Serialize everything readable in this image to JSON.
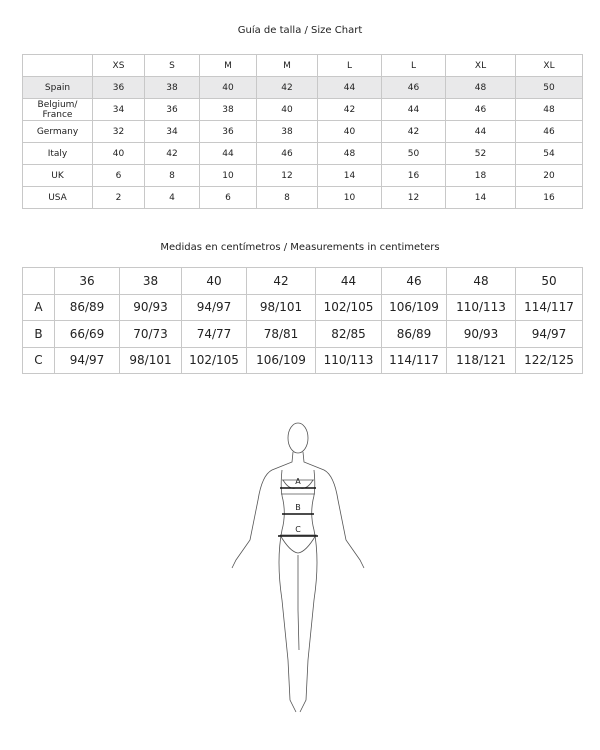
{
  "size_chart": {
    "title": "Guía de talla / Size Chart",
    "headers": [
      "",
      "XS",
      "S",
      "M",
      "M",
      "L",
      "L",
      "XL",
      "XL"
    ],
    "rows": [
      {
        "label": "Spain",
        "values": [
          "36",
          "38",
          "40",
          "42",
          "44",
          "46",
          "48",
          "50"
        ]
      },
      {
        "label": "Belgium/ France",
        "values": [
          "34",
          "36",
          "38",
          "40",
          "42",
          "44",
          "46",
          "48"
        ]
      },
      {
        "label": "Germany",
        "values": [
          "32",
          "34",
          "36",
          "38",
          "40",
          "42",
          "44",
          "46"
        ]
      },
      {
        "label": "Italy",
        "values": [
          "40",
          "42",
          "44",
          "46",
          "48",
          "50",
          "52",
          "54"
        ]
      },
      {
        "label": "UK",
        "values": [
          "6",
          "8",
          "10",
          "12",
          "14",
          "16",
          "18",
          "20"
        ]
      },
      {
        "label": "USA",
        "values": [
          "2",
          "4",
          "6",
          "8",
          "10",
          "12",
          "14",
          "16"
        ]
      }
    ],
    "highlight_color": "#e9e9ea"
  },
  "measurements": {
    "title": "Medidas en centímetros / Measurements in centimeters",
    "headers": [
      "",
      "36",
      "38",
      "40",
      "42",
      "44",
      "46",
      "48",
      "50"
    ],
    "rows": [
      {
        "label": "A",
        "values": [
          "86/89",
          "90/93",
          "94/97",
          "98/101",
          "102/105",
          "106/109",
          "110/113",
          "114/117"
        ]
      },
      {
        "label": "B",
        "values": [
          "66/69",
          "70/73",
          "74/77",
          "78/81",
          "82/85",
          "86/89",
          "90/93",
          "94/97"
        ]
      },
      {
        "label": "C",
        "values": [
          "94/97",
          "98/101",
          "102/105",
          "106/109",
          "110/113",
          "114/117",
          "118/121",
          "122/125"
        ]
      }
    ]
  },
  "figure": {
    "labels": [
      "A",
      "B",
      "C"
    ]
  }
}
